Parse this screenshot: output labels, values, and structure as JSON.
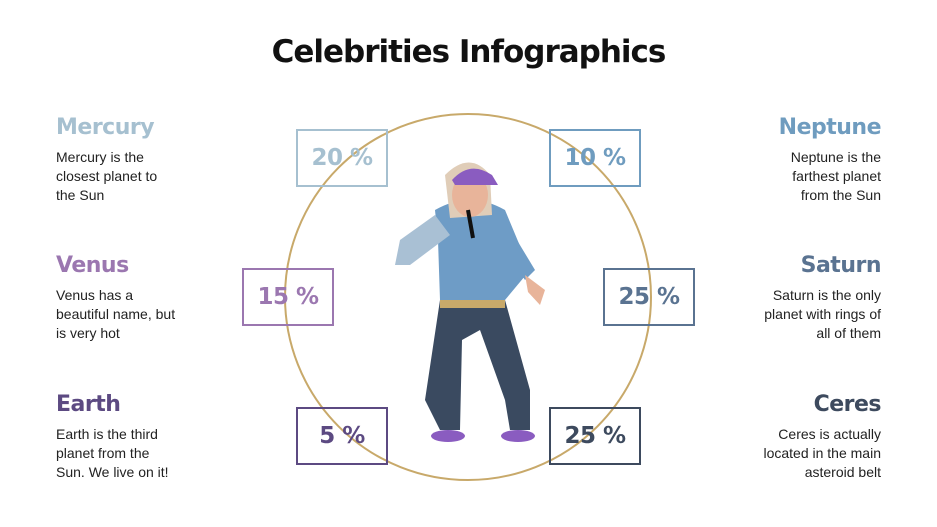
{
  "title": "Celebrities Infographics",
  "items": [
    {
      "name": "Mercury",
      "lines": [
        "Mercury is the",
        "closest planet to",
        "the Sun"
      ],
      "percent": "20 %"
    },
    {
      "name": "Venus",
      "lines": [
        "Venus has a",
        "beautiful name, but",
        "is very hot"
      ],
      "percent": "15 %"
    },
    {
      "name": "Earth",
      "lines": [
        "Earth is the third",
        "planet from the",
        "Sun. We live on it!"
      ],
      "percent": "5 %"
    },
    {
      "name": "Neptune",
      "lines": [
        "Neptune is the",
        "farthest planet",
        "from the Sun"
      ],
      "percent": "10 %"
    },
    {
      "name": "Saturn",
      "lines": [
        "Saturn is the only",
        "planet with rings of",
        "all of them"
      ],
      "percent": "25 %"
    },
    {
      "name": "Ceres",
      "lines": [
        "Ceres is actually",
        "located in the main",
        "asteroid belt"
      ],
      "percent": "25 %"
    }
  ]
}
